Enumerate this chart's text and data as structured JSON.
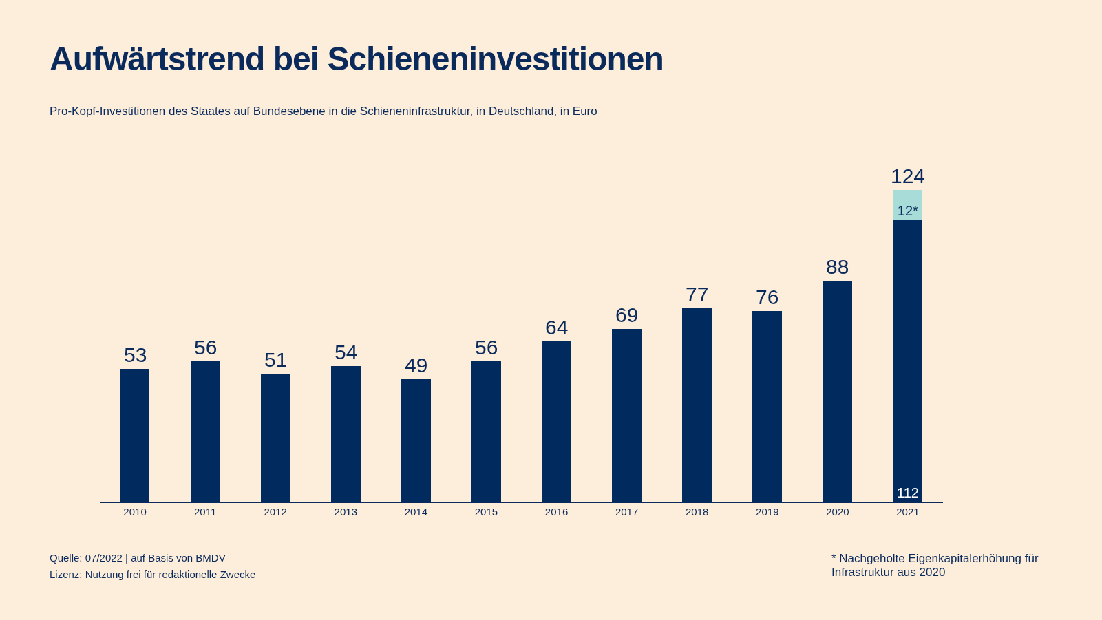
{
  "chart_data": {
    "type": "bar",
    "title": "Aufwärtstrend bei Schieneninvestitionen",
    "subtitle": "Pro-Kopf-Investitionen des Staates auf Bundesebene in die Schieneninfrastruktur, in Deutschland, in Euro",
    "categories": [
      "2010",
      "2011",
      "2012",
      "2013",
      "2014",
      "2015",
      "2016",
      "2017",
      "2018",
      "2019",
      "2020",
      "2021"
    ],
    "stacked": true,
    "series": [
      {
        "color": "#012a5e",
        "values": [
          53,
          56,
          51,
          54,
          49,
          56,
          64,
          69,
          77,
          76,
          88,
          112
        ],
        "value_labels": [
          null,
          null,
          null,
          null,
          null,
          null,
          null,
          null,
          null,
          null,
          null,
          "112"
        ]
      },
      {
        "color": "#a8dcd9",
        "values": [
          null,
          null,
          null,
          null,
          null,
          null,
          null,
          null,
          null,
          null,
          null,
          12
        ],
        "value_labels": [
          null,
          null,
          null,
          null,
          null,
          null,
          null,
          null,
          null,
          null,
          null,
          "12*"
        ]
      }
    ],
    "totals": [
      "53",
      "56",
      "51",
      "54",
      "49",
      "56",
      "64",
      "69",
      "77",
      "76",
      "88",
      "124"
    ],
    "legend": false,
    "grid": false,
    "annotations": [
      "Quelle: 07/2022 | auf Basis von BMDV",
      "Lizenz: Nutzung frei für redaktionelle Zwecke",
      "* Nachgeholte Eigenkapitalerhöhung für Infrastruktur aus 2020"
    ]
  }
}
